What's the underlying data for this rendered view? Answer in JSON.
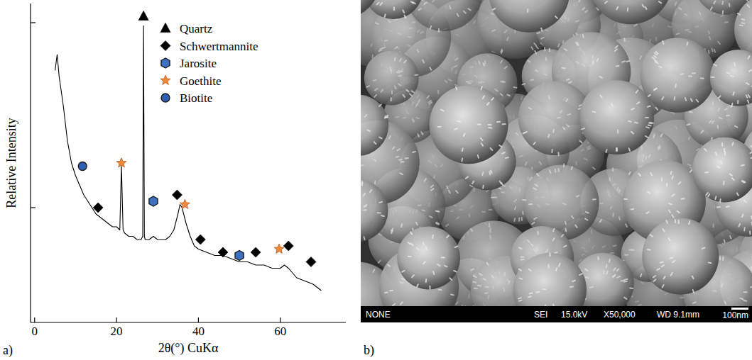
{
  "chart_data": {
    "type": "line",
    "x_label": "2θ(°) CuKα",
    "y_label": "Relative Intensity",
    "xlim": [
      -1,
      76
    ],
    "xticks": [
      0,
      20,
      40,
      60
    ],
    "ylim": [
      0,
      100
    ],
    "yticks": [
      36,
      94
    ],
    "tick_labels": "x",
    "legend": "upper right",
    "series": [
      {
        "type": "line",
        "color": "#000000",
        "x": [
          5,
          5.5,
          6,
          7,
          8,
          9,
          10,
          11,
          12,
          13,
          14,
          15,
          16,
          17,
          18,
          19,
          20,
          20.8,
          21.2,
          21.6,
          22,
          23,
          24,
          25,
          26,
          26.4,
          26.6,
          26.8,
          27,
          28,
          29,
          30,
          31,
          32,
          33,
          34,
          35,
          35.5,
          36,
          37,
          38,
          39,
          40,
          42,
          44,
          46,
          48,
          50,
          52,
          54,
          56,
          58,
          60,
          61,
          62,
          64,
          66,
          68,
          70
        ],
        "values": [
          79,
          84,
          77,
          68,
          57,
          50,
          46,
          43,
          40,
          38,
          36,
          34,
          33,
          32,
          31,
          30,
          30,
          29,
          49,
          29,
          28,
          27,
          27,
          26,
          26,
          27,
          93,
          27,
          26,
          26,
          27,
          26,
          26,
          26,
          27,
          29,
          34,
          37,
          36,
          31,
          27,
          24,
          23,
          22,
          21,
          21,
          20,
          19,
          19,
          18,
          18,
          17,
          17,
          18,
          17,
          14,
          13,
          12,
          10
        ]
      },
      {
        "name": "Quartz",
        "type": "scatter",
        "marker": "triangle",
        "color": "#000000",
        "x": [
          26.6
        ],
        "values": [
          96
        ]
      },
      {
        "name": "Schwertmannite",
        "type": "scatter",
        "marker": "diamond",
        "color": "#000000",
        "x": [
          15.5,
          34.8,
          40.5,
          46,
          54,
          62,
          67.5
        ],
        "values": [
          36,
          40,
          26,
          22,
          22,
          24,
          19
        ]
      },
      {
        "name": "Jarosite",
        "type": "scatter",
        "marker": "hexagon",
        "color": "#3d6fc0",
        "x": [
          29,
          50
        ],
        "values": [
          38,
          21
        ]
      },
      {
        "name": "Goethite",
        "type": "scatter",
        "marker": "star",
        "color": "#f0883e",
        "x": [
          21.2,
          36.7,
          59.7
        ],
        "values": [
          50,
          37,
          23
        ]
      },
      {
        "name": "Biotite",
        "type": "scatter",
        "marker": "circle",
        "color": "#2f5fb3",
        "x": [
          11.7
        ],
        "values": [
          49
        ]
      }
    ]
  },
  "panel_labels": [
    "a)",
    "b)"
  ],
  "sem_image": {
    "info_bar": [
      "NONE",
      "SEI",
      "15.0kV",
      "X50,000",
      "WD 9.1mm"
    ],
    "scale_bar": "100nm"
  }
}
